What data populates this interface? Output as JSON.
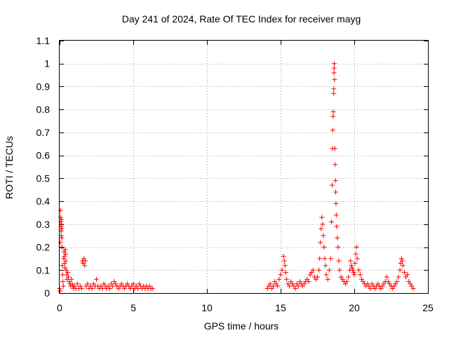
{
  "chart_data": {
    "type": "scatter",
    "title": "Day 241 of 2024, Rate Of TEC Index for receiver mayg",
    "xlabel": "GPS time / hours",
    "ylabel": "ROTI / TECUs",
    "xlim": [
      0,
      25
    ],
    "ylim": [
      0,
      1.1
    ],
    "xticks": [
      0,
      5,
      10,
      15,
      20,
      25
    ],
    "yticks": [
      0,
      0.1,
      0.2,
      0.3,
      0.4,
      0.5,
      0.6,
      0.7,
      0.8,
      0.9,
      1,
      1.1
    ],
    "xtick_labels": [
      "0",
      "5",
      "10",
      "15",
      "20",
      "25"
    ],
    "ytick_labels": [
      "0",
      "0.1",
      "0.2",
      "0.3",
      "0.4",
      "0.5",
      "0.6",
      "0.7",
      "0.8",
      "0.9",
      "1",
      "1.1"
    ],
    "grid": true,
    "marker": "+",
    "color": "#ff0000",
    "series": [
      {
        "name": "ROTI",
        "points": [
          [
            0.0,
            0.02
          ],
          [
            0.03,
            0.01
          ],
          [
            0.05,
            0.22
          ],
          [
            0.06,
            0.36
          ],
          [
            0.07,
            0.33
          ],
          [
            0.08,
            0.31
          ],
          [
            0.09,
            0.29
          ],
          [
            0.1,
            0.27
          ],
          [
            0.11,
            0.25
          ],
          [
            0.12,
            0.3
          ],
          [
            0.13,
            0.32
          ],
          [
            0.14,
            0.28
          ],
          [
            0.15,
            0.24
          ],
          [
            0.16,
            0.2
          ],
          [
            0.18,
            0.12
          ],
          [
            0.2,
            0.08
          ],
          [
            0.22,
            0.05
          ],
          [
            0.25,
            0.03
          ],
          [
            0.28,
            0.15
          ],
          [
            0.3,
            0.18
          ],
          [
            0.32,
            0.16
          ],
          [
            0.34,
            0.13
          ],
          [
            0.36,
            0.11
          ],
          [
            0.38,
            0.19
          ],
          [
            0.4,
            0.17
          ],
          [
            0.42,
            0.14
          ],
          [
            0.45,
            0.1
          ],
          [
            0.48,
            0.08
          ],
          [
            0.5,
            0.06
          ],
          [
            0.55,
            0.09
          ],
          [
            0.6,
            0.07
          ],
          [
            0.65,
            0.05
          ],
          [
            0.7,
            0.04
          ],
          [
            0.75,
            0.03
          ],
          [
            0.8,
            0.06
          ],
          [
            0.85,
            0.04
          ],
          [
            0.9,
            0.03
          ],
          [
            0.95,
            0.02
          ],
          [
            1.0,
            0.03
          ],
          [
            1.1,
            0.02
          ],
          [
            1.2,
            0.04
          ],
          [
            1.3,
            0.02
          ],
          [
            1.4,
            0.03
          ],
          [
            1.5,
            0.02
          ],
          [
            1.55,
            0.14
          ],
          [
            1.6,
            0.13
          ],
          [
            1.65,
            0.15
          ],
          [
            1.7,
            0.12
          ],
          [
            1.75,
            0.14
          ],
          [
            1.8,
            0.03
          ],
          [
            1.9,
            0.04
          ],
          [
            2.0,
            0.02
          ],
          [
            2.1,
            0.03
          ],
          [
            2.2,
            0.02
          ],
          [
            2.3,
            0.04
          ],
          [
            2.4,
            0.03
          ],
          [
            2.5,
            0.06
          ],
          [
            2.6,
            0.03
          ],
          [
            2.7,
            0.02
          ],
          [
            2.8,
            0.03
          ],
          [
            2.9,
            0.02
          ],
          [
            3.0,
            0.04
          ],
          [
            3.1,
            0.03
          ],
          [
            3.2,
            0.02
          ],
          [
            3.3,
            0.03
          ],
          [
            3.4,
            0.02
          ],
          [
            3.5,
            0.04
          ],
          [
            3.6,
            0.03
          ],
          [
            3.7,
            0.05
          ],
          [
            3.8,
            0.04
          ],
          [
            3.9,
            0.03
          ],
          [
            4.0,
            0.02
          ],
          [
            4.1,
            0.03
          ],
          [
            4.2,
            0.04
          ],
          [
            4.3,
            0.03
          ],
          [
            4.4,
            0.02
          ],
          [
            4.5,
            0.03
          ],
          [
            4.6,
            0.04
          ],
          [
            4.7,
            0.03
          ],
          [
            4.8,
            0.02
          ],
          [
            4.9,
            0.03
          ],
          [
            5.0,
            0.04
          ],
          [
            5.1,
            0.02
          ],
          [
            5.2,
            0.03
          ],
          [
            5.3,
            0.02
          ],
          [
            5.4,
            0.04
          ],
          [
            5.5,
            0.03
          ],
          [
            5.6,
            0.02
          ],
          [
            5.7,
            0.03
          ],
          [
            5.8,
            0.02
          ],
          [
            5.9,
            0.03
          ],
          [
            6.0,
            0.02
          ],
          [
            6.1,
            0.03
          ],
          [
            6.2,
            0.02
          ],
          [
            6.3,
            0.02
          ],
          [
            14.1,
            0.02
          ],
          [
            14.2,
            0.03
          ],
          [
            14.3,
            0.04
          ],
          [
            14.4,
            0.02
          ],
          [
            14.5,
            0.03
          ],
          [
            14.6,
            0.05
          ],
          [
            14.7,
            0.04
          ],
          [
            14.8,
            0.03
          ],
          [
            14.9,
            0.06
          ],
          [
            15.0,
            0.08
          ],
          [
            15.1,
            0.1
          ],
          [
            15.2,
            0.16
          ],
          [
            15.25,
            0.14
          ],
          [
            15.3,
            0.12
          ],
          [
            15.35,
            0.09
          ],
          [
            15.4,
            0.06
          ],
          [
            15.5,
            0.04
          ],
          [
            15.6,
            0.03
          ],
          [
            15.7,
            0.05
          ],
          [
            15.8,
            0.04
          ],
          [
            15.9,
            0.03
          ],
          [
            16.0,
            0.02
          ],
          [
            16.1,
            0.04
          ],
          [
            16.2,
            0.03
          ],
          [
            16.3,
            0.05
          ],
          [
            16.4,
            0.04
          ],
          [
            16.5,
            0.03
          ],
          [
            16.6,
            0.04
          ],
          [
            16.7,
            0.05
          ],
          [
            16.8,
            0.06
          ],
          [
            16.9,
            0.05
          ],
          [
            17.0,
            0.08
          ],
          [
            17.1,
            0.09
          ],
          [
            17.2,
            0.1
          ],
          [
            17.3,
            0.07
          ],
          [
            17.4,
            0.06
          ],
          [
            17.5,
            0.07
          ],
          [
            17.6,
            0.1
          ],
          [
            17.65,
            0.15
          ],
          [
            17.7,
            0.22
          ],
          [
            17.75,
            0.28
          ],
          [
            17.8,
            0.33
          ],
          [
            17.85,
            0.3
          ],
          [
            17.9,
            0.25
          ],
          [
            17.95,
            0.2
          ],
          [
            18.0,
            0.15
          ],
          [
            18.05,
            0.12
          ],
          [
            18.1,
            0.08
          ],
          [
            18.2,
            0.06
          ],
          [
            18.3,
            0.1
          ],
          [
            18.4,
            0.15
          ],
          [
            18.45,
            0.31
          ],
          [
            18.5,
            0.47
          ],
          [
            18.52,
            0.63
          ],
          [
            18.54,
            0.71
          ],
          [
            18.56,
            0.77
          ],
          [
            18.58,
            0.79
          ],
          [
            18.6,
            0.87
          ],
          [
            18.61,
            0.89
          ],
          [
            18.62,
            0.96
          ],
          [
            18.63,
            0.98
          ],
          [
            18.64,
            1.0
          ],
          [
            18.66,
            0.93
          ],
          [
            18.68,
            0.63
          ],
          [
            18.7,
            0.56
          ],
          [
            18.72,
            0.49
          ],
          [
            18.74,
            0.44
          ],
          [
            18.76,
            0.39
          ],
          [
            18.78,
            0.34
          ],
          [
            18.8,
            0.29
          ],
          [
            18.85,
            0.24
          ],
          [
            18.9,
            0.2
          ],
          [
            18.95,
            0.14
          ],
          [
            19.0,
            0.1
          ],
          [
            19.1,
            0.07
          ],
          [
            19.2,
            0.06
          ],
          [
            19.3,
            0.05
          ],
          [
            19.4,
            0.04
          ],
          [
            19.5,
            0.05
          ],
          [
            19.6,
            0.07
          ],
          [
            19.7,
            0.1
          ],
          [
            19.75,
            0.14
          ],
          [
            19.8,
            0.12
          ],
          [
            19.85,
            0.11
          ],
          [
            19.9,
            0.1
          ],
          [
            19.95,
            0.09
          ],
          [
            20.0,
            0.08
          ],
          [
            20.05,
            0.13
          ],
          [
            20.1,
            0.17
          ],
          [
            20.15,
            0.2
          ],
          [
            20.2,
            0.15
          ],
          [
            20.3,
            0.1
          ],
          [
            20.4,
            0.08
          ],
          [
            20.5,
            0.06
          ],
          [
            20.6,
            0.05
          ],
          [
            20.7,
            0.04
          ],
          [
            20.8,
            0.03
          ],
          [
            20.9,
            0.04
          ],
          [
            21.0,
            0.03
          ],
          [
            21.1,
            0.02
          ],
          [
            21.2,
            0.04
          ],
          [
            21.3,
            0.03
          ],
          [
            21.4,
            0.02
          ],
          [
            21.5,
            0.03
          ],
          [
            21.6,
            0.04
          ],
          [
            21.7,
            0.03
          ],
          [
            21.8,
            0.02
          ],
          [
            21.9,
            0.03
          ],
          [
            22.0,
            0.04
          ],
          [
            22.1,
            0.05
          ],
          [
            22.2,
            0.07
          ],
          [
            22.3,
            0.05
          ],
          [
            22.4,
            0.04
          ],
          [
            22.5,
            0.03
          ],
          [
            22.6,
            0.02
          ],
          [
            22.7,
            0.03
          ],
          [
            22.8,
            0.04
          ],
          [
            22.9,
            0.05
          ],
          [
            23.0,
            0.07
          ],
          [
            23.1,
            0.1
          ],
          [
            23.15,
            0.13
          ],
          [
            23.2,
            0.15
          ],
          [
            23.25,
            0.14
          ],
          [
            23.3,
            0.12
          ],
          [
            23.4,
            0.09
          ],
          [
            23.5,
            0.07
          ],
          [
            23.6,
            0.08
          ],
          [
            23.7,
            0.05
          ],
          [
            23.8,
            0.04
          ],
          [
            23.9,
            0.03
          ],
          [
            24.0,
            0.02
          ]
        ]
      }
    ]
  }
}
